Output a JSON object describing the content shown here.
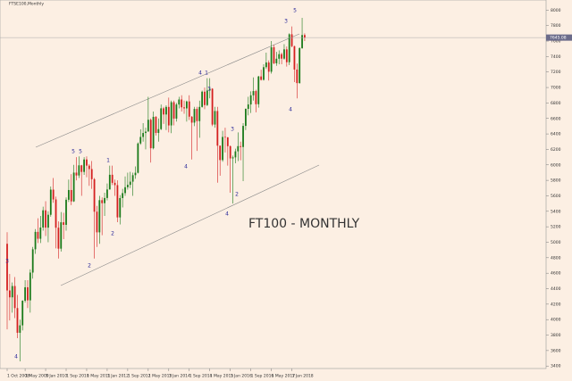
{
  "chart_data": {
    "type": "candlestick",
    "title": "FTSE100,Monthly",
    "annotation": "FT100 - MONTHLY",
    "categories": [
      "1 Oct 2008",
      null,
      null,
      null,
      null,
      null,
      null,
      "1 May 2009",
      null,
      null,
      null,
      null,
      null,
      null,
      null,
      "1 Jan 2010",
      null,
      null,
      null,
      null,
      null,
      null,
      null,
      "1 Sep 2010",
      null,
      null,
      null,
      null,
      null,
      null,
      null,
      "1 May 2011",
      null,
      null,
      null,
      null,
      null,
      null,
      null,
      "1 Jan 2012",
      null,
      null,
      null,
      null,
      null,
      null,
      null,
      "1 Sep 2012",
      null,
      null,
      null,
      null,
      null,
      null,
      null,
      "1 May 2013",
      null,
      null,
      null,
      null,
      null,
      null,
      null,
      "1 Jan 2014",
      null,
      null,
      null,
      null,
      null,
      null,
      null,
      "1 Sep 2014",
      null,
      null,
      null,
      null,
      null,
      null,
      null,
      "1 May 2015",
      null,
      null,
      null,
      null,
      null,
      null,
      null,
      "1 Jan 2016",
      null,
      null,
      null,
      null,
      null,
      null,
      null,
      "1 Sep 2016",
      null,
      null,
      null,
      null,
      null,
      null,
      null,
      "1 May 2017",
      null,
      null,
      null,
      null,
      null,
      null,
      null,
      "1 Jan 2018",
      null,
      null,
      null,
      null,
      null
    ],
    "open": [
      4980,
      4377,
      4288,
      4434,
      4149,
      3830,
      3926,
      4244,
      4418,
      4249,
      4608,
      4909,
      5134,
      5045,
      5190,
      5413,
      5189,
      5355,
      5680,
      5553,
      5188,
      4917,
      5258,
      5225,
      5549,
      5675,
      5528,
      5900,
      5863,
      5994,
      5909,
      6070,
      5990,
      5946,
      5815,
      5395,
      5128,
      5544,
      5505,
      5572,
      5682,
      5872,
      5768,
      5738,
      5321,
      5571,
      5635,
      5711,
      5742,
      5783,
      5867,
      5898,
      6277,
      6361,
      6412,
      6430,
      6583,
      6215,
      6621,
      6413,
      6462,
      6731,
      6651,
      6749,
      6510,
      6810,
      6598,
      6780,
      6845,
      6744,
      6730,
      6820,
      6623,
      6546,
      6723,
      6566,
      6749,
      6946,
      6773,
      6961,
      6984,
      6521,
      6696,
      6248,
      6062,
      6361,
      6356,
      6242,
      6084,
      6097,
      6175,
      6242,
      6231,
      6504,
      6724,
      6781,
      6899,
      6954,
      6784,
      7143,
      7099,
      7263,
      7323,
      7204,
      7520,
      7313,
      7372,
      7431,
      7373,
      7493,
      7327,
      7688,
      7534,
      7232,
      7057,
      7509,
      7678
    ],
    "high": [
      5130,
      4590,
      4480,
      4550,
      4320,
      4000,
      4250,
      4510,
      4510,
      4650,
      4940,
      5170,
      5310,
      5340,
      5460,
      5530,
      5400,
      5720,
      5830,
      5590,
      5270,
      5390,
      5380,
      5580,
      5810,
      5880,
      6000,
      6100,
      6110,
      6000,
      6100,
      6110,
      6010,
      6050,
      5830,
      5470,
      5600,
      5580,
      5640,
      5760,
      5990,
      5990,
      5810,
      5800,
      5610,
      5690,
      5850,
      5900,
      5910,
      5900,
      5980,
      6290,
      6460,
      6540,
      6480,
      6880,
      6600,
      6690,
      6630,
      6600,
      6780,
      6750,
      6770,
      6870,
      6830,
      6830,
      6800,
      6880,
      6900,
      6830,
      6830,
      6900,
      6630,
      6750,
      6750,
      6830,
      6960,
      7000,
      7120,
      7120,
      6990,
      6750,
      6750,
      6250,
      6440,
      6480,
      6360,
      6250,
      6120,
      6210,
      6420,
      6300,
      6540,
      6730,
      6880,
      6950,
      7130,
      6970,
      7150,
      7230,
      7300,
      7450,
      7350,
      7600,
      7550,
      7460,
      7480,
      7450,
      7560,
      7530,
      7700,
      7790,
      7540,
      7310,
      7520,
      7900,
      7700
    ],
    "low": [
      3874,
      3990,
      4090,
      4020,
      3760,
      3460,
      3860,
      4220,
      4150,
      4090,
      4530,
      4850,
      4990,
      4990,
      5150,
      5080,
      5000,
      5330,
      5510,
      4920,
      4790,
      4880,
      5040,
      5150,
      5520,
      5480,
      5520,
      5800,
      5830,
      5600,
      5870,
      5840,
      5730,
      5690,
      4790,
      4940,
      4980,
      5090,
      5340,
      5540,
      5680,
      5740,
      5600,
      5260,
      5230,
      5450,
      5600,
      5680,
      5700,
      5600,
      5820,
      5890,
      6260,
      6300,
      6200,
      6430,
      6030,
      6200,
      6380,
      6300,
      6450,
      6530,
      6450,
      6420,
      6410,
      6510,
      6560,
      6730,
      6690,
      6660,
      6560,
      6580,
      6070,
      6500,
      6180,
      6350,
      6740,
      6720,
      6760,
      6860,
      6500,
      6480,
      5770,
      5860,
      6040,
      6160,
      5990,
      5640,
      5500,
      6020,
      6050,
      6060,
      5790,
      6450,
      6640,
      6670,
      6830,
      6680,
      6740,
      7090,
      7090,
      7240,
      7090,
      7180,
      7300,
      7280,
      7300,
      7300,
      7360,
      7270,
      7290,
      7520,
      7070,
      6860,
      7050,
      7500,
      7600
    ],
    "close": [
      4377,
      4288,
      4434,
      4149,
      3830,
      3926,
      4244,
      4418,
      4249,
      4608,
      4909,
      5134,
      5045,
      5190,
      5413,
      5189,
      5355,
      5680,
      5553,
      5188,
      4917,
      5258,
      5225,
      5549,
      5675,
      5528,
      5900,
      5863,
      5994,
      5909,
      6070,
      5990,
      5946,
      5815,
      5395,
      5128,
      5544,
      5505,
      5572,
      5682,
      5872,
      5768,
      5738,
      5321,
      5571,
      5635,
      5711,
      5742,
      5783,
      5867,
      5898,
      6277,
      6361,
      6412,
      6430,
      6583,
      6215,
      6621,
      6413,
      6462,
      6731,
      6651,
      6749,
      6510,
      6810,
      6598,
      6780,
      6845,
      6744,
      6730,
      6820,
      6623,
      6546,
      6723,
      6566,
      6749,
      6946,
      6773,
      6961,
      6984,
      6521,
      6696,
      6248,
      6062,
      6361,
      6356,
      6242,
      6084,
      6097,
      6175,
      6242,
      6231,
      6504,
      6724,
      6781,
      6899,
      6954,
      6784,
      7143,
      7099,
      7263,
      7323,
      7204,
      7520,
      7313,
      7372,
      7431,
      7373,
      7493,
      7327,
      7688,
      7534,
      7232,
      7057,
      7509,
      7678,
      7645.08
    ],
    "ylim": [
      3368,
      8131
    ],
    "yticks": [
      3400,
      3600,
      3800,
      4000,
      4200,
      4400,
      4600,
      4800,
      5000,
      5200,
      5400,
      5600,
      5800,
      6000,
      6200,
      6400,
      6600,
      6800,
      7000,
      7200,
      7400,
      7600,
      7800,
      8000
    ],
    "up_color": "#1a7a1a",
    "down_color": "#d42020",
    "wave_labels": [
      "3",
      "4",
      "5",
      "5",
      "2",
      "1",
      "2",
      "4",
      "3",
      "4",
      "3",
      "1",
      "4",
      "2",
      "3",
      "5",
      "4"
    ]
  }
}
